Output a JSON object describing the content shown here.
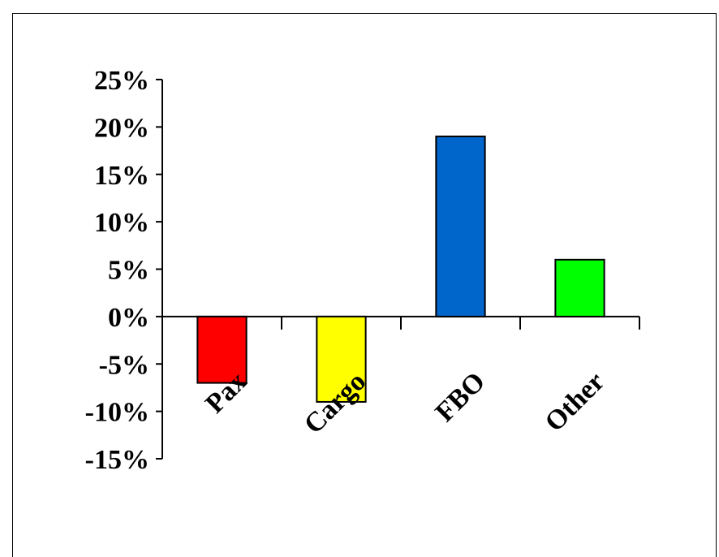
{
  "chart_data": {
    "type": "bar",
    "categories": [
      "Pax",
      "Cargo",
      "FBO",
      "Other"
    ],
    "values": [
      -7,
      -9,
      19,
      6
    ],
    "colors": [
      "#ff0000",
      "#ffff00",
      "#0066cc",
      "#00ff00"
    ],
    "ylim": [
      -15,
      25
    ],
    "yticks": [
      "25%",
      "20%",
      "15%",
      "10%",
      "5%",
      "0%",
      "-5%",
      "-10%",
      "-15%"
    ],
    "title": "",
    "xlabel": "",
    "ylabel": "",
    "legend": "none",
    "grid": false
  }
}
